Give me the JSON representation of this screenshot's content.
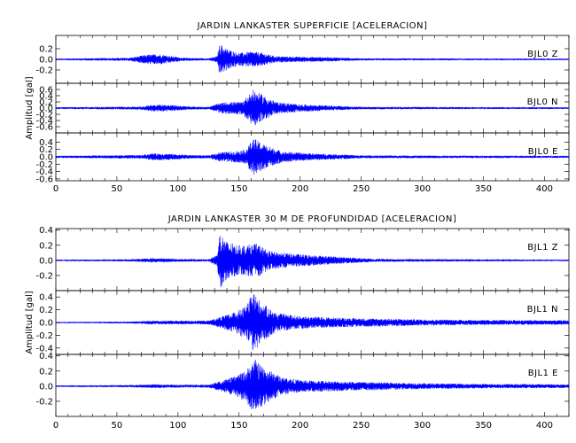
{
  "chart_data": [
    {
      "type": "line",
      "title": "JARDIN LANKASTER SUPERFICIE [ACELERACION]",
      "xlabel": "",
      "ylabel": "Amplitud [gal]",
      "xlim": [
        0,
        420
      ],
      "x_ticks": [
        "0",
        "50",
        "100",
        "150",
        "200",
        "250",
        "300",
        "350",
        "400"
      ],
      "grid": false,
      "traces": [
        {
          "label": "BJL0   Z",
          "ylim": [
            -0.45,
            0.45
          ],
          "y_ticks": [
            "0.2",
            "0.0",
            "-0.2"
          ],
          "y_tick_values": [
            0.2,
            0.0,
            -0.2
          ],
          "envelope": [
            [
              0,
              0.015
            ],
            [
              60,
              0.03
            ],
            [
              75,
              0.09
            ],
            [
              85,
              0.1
            ],
            [
              95,
              0.06
            ],
            [
              105,
              0.03
            ],
            [
              125,
              0.02
            ],
            [
              132,
              0.06
            ],
            [
              134,
              0.3
            ],
            [
              140,
              0.2
            ],
            [
              150,
              0.12
            ],
            [
              160,
              0.15
            ],
            [
              168,
              0.13
            ],
            [
              180,
              0.06
            ],
            [
              200,
              0.05
            ],
            [
              225,
              0.04
            ],
            [
              250,
              0.02
            ],
            [
              420,
              0.015
            ]
          ]
        },
        {
          "label": "BJL0   N",
          "ylim": [
            -0.8,
            0.8
          ],
          "y_ticks": [
            "0.6",
            "0.4",
            "0.2",
            "0.0",
            "-0.2",
            "-0.4",
            "-0.6"
          ],
          "y_tick_values": [
            0.6,
            0.4,
            0.2,
            0.0,
            -0.2,
            -0.4,
            -0.6
          ],
          "envelope": [
            [
              0,
              0.03
            ],
            [
              70,
              0.05
            ],
            [
              80,
              0.12
            ],
            [
              95,
              0.1
            ],
            [
              110,
              0.05
            ],
            [
              125,
              0.04
            ],
            [
              133,
              0.15
            ],
            [
              140,
              0.2
            ],
            [
              152,
              0.2
            ],
            [
              162,
              0.6
            ],
            [
              168,
              0.45
            ],
            [
              180,
              0.2
            ],
            [
              200,
              0.12
            ],
            [
              225,
              0.08
            ],
            [
              250,
              0.04
            ],
            [
              420,
              0.03
            ]
          ]
        },
        {
          "label": "BJL0   E",
          "ylim": [
            -0.65,
            0.65
          ],
          "y_ticks": [
            "0.4",
            "0.2",
            "0.0",
            "-0.2",
            "-0.4",
            "-0.6"
          ],
          "y_tick_values": [
            0.4,
            0.2,
            0.0,
            -0.2,
            -0.4,
            -0.6
          ],
          "envelope": [
            [
              0,
              0.03
            ],
            [
              70,
              0.05
            ],
            [
              80,
              0.1
            ],
            [
              95,
              0.08
            ],
            [
              110,
              0.05
            ],
            [
              125,
              0.04
            ],
            [
              133,
              0.12
            ],
            [
              145,
              0.15
            ],
            [
              155,
              0.2
            ],
            [
              162,
              0.5
            ],
            [
              170,
              0.35
            ],
            [
              185,
              0.15
            ],
            [
              205,
              0.1
            ],
            [
              230,
              0.07
            ],
            [
              250,
              0.04
            ],
            [
              420,
              0.03
            ]
          ]
        }
      ]
    },
    {
      "type": "line",
      "title": "JARDIN LANKASTER 30 M DE PROFUNDIDAD [ACELERACION]",
      "xlabel": "",
      "ylabel": "Amplitud [gal]",
      "xlim": [
        0,
        420
      ],
      "x_ticks": [
        "0",
        "50",
        "100",
        "150",
        "200",
        "250",
        "300",
        "350",
        "400"
      ],
      "grid": false,
      "traces": [
        {
          "label": "BJL1   Z",
          "ylim": [
            -0.4,
            0.42
          ],
          "y_ticks": [
            "0.4",
            "0.2",
            "0.0",
            "-0.2"
          ],
          "y_tick_values": [
            0.4,
            0.2,
            0.0,
            -0.2
          ],
          "envelope": [
            [
              0,
              0.01
            ],
            [
              60,
              0.015
            ],
            [
              80,
              0.03
            ],
            [
              100,
              0.02
            ],
            [
              125,
              0.015
            ],
            [
              132,
              0.08
            ],
            [
              134,
              0.38
            ],
            [
              140,
              0.25
            ],
            [
              150,
              0.2
            ],
            [
              165,
              0.22
            ],
            [
              175,
              0.12
            ],
            [
              200,
              0.08
            ],
            [
              230,
              0.05
            ],
            [
              260,
              0.02
            ],
            [
              420,
              0.01
            ]
          ]
        },
        {
          "label": "BJL1   N",
          "ylim": [
            -0.5,
            0.5
          ],
          "y_ticks": [
            "0.4",
            "0.2",
            "0.0",
            "-0.2",
            "-0.4"
          ],
          "y_tick_values": [
            0.4,
            0.2,
            0.0,
            -0.2,
            -0.4
          ],
          "envelope": [
            [
              0,
              0.01
            ],
            [
              60,
              0.015
            ],
            [
              80,
              0.03
            ],
            [
              100,
              0.03
            ],
            [
              125,
              0.03
            ],
            [
              133,
              0.08
            ],
            [
              145,
              0.15
            ],
            [
              155,
              0.25
            ],
            [
              162,
              0.48
            ],
            [
              168,
              0.32
            ],
            [
              180,
              0.15
            ],
            [
              200,
              0.1
            ],
            [
              240,
              0.07
            ],
            [
              300,
              0.05
            ],
            [
              350,
              0.04
            ],
            [
              420,
              0.035
            ]
          ]
        },
        {
          "label": "BJL1   E",
          "ylim": [
            -0.4,
            0.42
          ],
          "y_ticks": [
            "0.4",
            "0.2",
            "0.0",
            "-0.2"
          ],
          "y_tick_values": [
            0.4,
            0.2,
            0.0,
            -0.2
          ],
          "envelope": [
            [
              0,
              0.01
            ],
            [
              60,
              0.015
            ],
            [
              80,
              0.025
            ],
            [
              100,
              0.02
            ],
            [
              125,
              0.02
            ],
            [
              133,
              0.06
            ],
            [
              145,
              0.12
            ],
            [
              155,
              0.2
            ],
            [
              163,
              0.36
            ],
            [
              170,
              0.25
            ],
            [
              185,
              0.12
            ],
            [
              200,
              0.08
            ],
            [
              240,
              0.06
            ],
            [
              300,
              0.04
            ],
            [
              350,
              0.03
            ],
            [
              420,
              0.025
            ]
          ]
        }
      ]
    }
  ],
  "colors": {
    "trace": "#0000ff",
    "axes": "#000000",
    "background": "#ffffff"
  }
}
